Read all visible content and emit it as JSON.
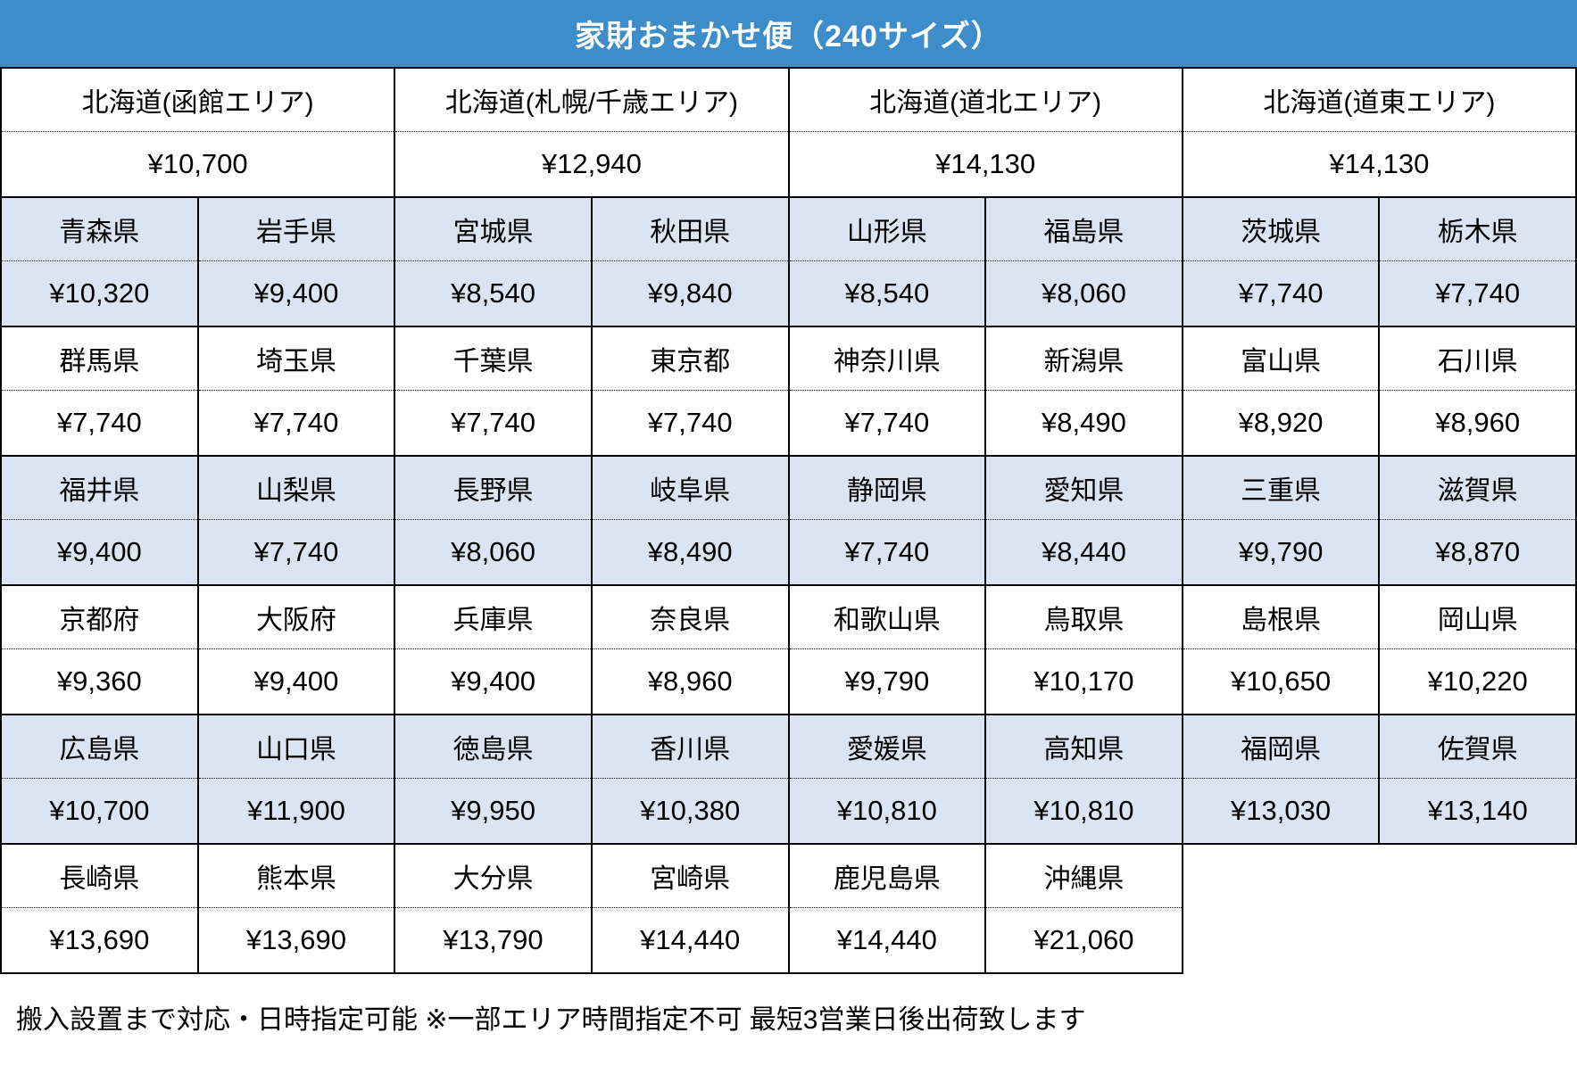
{
  "title": "家財おまかせ便（240サイズ）",
  "colors": {
    "header_bg": "#3d8dca",
    "header_text": "#ffffff",
    "row_alt_bg": "#dbe5f1",
    "row_bg": "#ffffff",
    "border": "#000000"
  },
  "hokkaido": [
    {
      "area": "北海道(函館エリア)",
      "price": "¥10,700"
    },
    {
      "area": "北海道(札幌/千歳エリア)",
      "price": "¥12,940"
    },
    {
      "area": "北海道(道北エリア)",
      "price": "¥14,130"
    },
    {
      "area": "北海道(道東エリア)",
      "price": "¥14,130"
    }
  ],
  "groups": [
    {
      "shaded": true,
      "cells": [
        {
          "name": "青森県",
          "price": "¥10,320"
        },
        {
          "name": "岩手県",
          "price": "¥9,400"
        },
        {
          "name": "宮城県",
          "price": "¥8,540"
        },
        {
          "name": "秋田県",
          "price": "¥9,840"
        },
        {
          "name": "山形県",
          "price": "¥8,540"
        },
        {
          "name": "福島県",
          "price": "¥8,060"
        },
        {
          "name": "茨城県",
          "price": "¥7,740"
        },
        {
          "name": "栃木県",
          "price": "¥7,740"
        }
      ]
    },
    {
      "shaded": false,
      "cells": [
        {
          "name": "群馬県",
          "price": "¥7,740"
        },
        {
          "name": "埼玉県",
          "price": "¥7,740"
        },
        {
          "name": "千葉県",
          "price": "¥7,740"
        },
        {
          "name": "東京都",
          "price": "¥7,740"
        },
        {
          "name": "神奈川県",
          "price": "¥7,740"
        },
        {
          "name": "新潟県",
          "price": "¥8,490"
        },
        {
          "name": "富山県",
          "price": "¥8,920"
        },
        {
          "name": "石川県",
          "price": "¥8,960"
        }
      ]
    },
    {
      "shaded": true,
      "cells": [
        {
          "name": "福井県",
          "price": "¥9,400"
        },
        {
          "name": "山梨県",
          "price": "¥7,740"
        },
        {
          "name": "長野県",
          "price": "¥8,060"
        },
        {
          "name": "岐阜県",
          "price": "¥8,490"
        },
        {
          "name": "静岡県",
          "price": "¥7,740"
        },
        {
          "name": "愛知県",
          "price": "¥8,440"
        },
        {
          "name": "三重県",
          "price": "¥9,790"
        },
        {
          "name": "滋賀県",
          "price": "¥8,870"
        }
      ]
    },
    {
      "shaded": false,
      "cells": [
        {
          "name": "京都府",
          "price": "¥9,360"
        },
        {
          "name": "大阪府",
          "price": "¥9,400"
        },
        {
          "name": "兵庫県",
          "price": "¥9,400"
        },
        {
          "name": "奈良県",
          "price": "¥8,960"
        },
        {
          "name": "和歌山県",
          "price": "¥9,790"
        },
        {
          "name": "鳥取県",
          "price": "¥10,170"
        },
        {
          "name": "島根県",
          "price": "¥10,650"
        },
        {
          "name": "岡山県",
          "price": "¥10,220"
        }
      ]
    },
    {
      "shaded": true,
      "cells": [
        {
          "name": "広島県",
          "price": "¥10,700"
        },
        {
          "name": "山口県",
          "price": "¥11,900"
        },
        {
          "name": "徳島県",
          "price": "¥9,950"
        },
        {
          "name": "香川県",
          "price": "¥10,380"
        },
        {
          "name": "愛媛県",
          "price": "¥10,810"
        },
        {
          "name": "高知県",
          "price": "¥10,810"
        },
        {
          "name": "福岡県",
          "price": "¥13,030"
        },
        {
          "name": "佐賀県",
          "price": "¥13,140"
        }
      ]
    },
    {
      "shaded": false,
      "cells": [
        {
          "name": "長崎県",
          "price": "¥13,690"
        },
        {
          "name": "熊本県",
          "price": "¥13,690"
        },
        {
          "name": "大分県",
          "price": "¥13,790"
        },
        {
          "name": "宮崎県",
          "price": "¥14,440"
        },
        {
          "name": "鹿児島県",
          "price": "¥14,440"
        },
        {
          "name": "沖縄県",
          "price": "¥21,060"
        }
      ]
    }
  ],
  "footer": "搬入設置まで対応・日時指定可能 ※一部エリア時間指定不可 最短3営業日後出荷致します"
}
